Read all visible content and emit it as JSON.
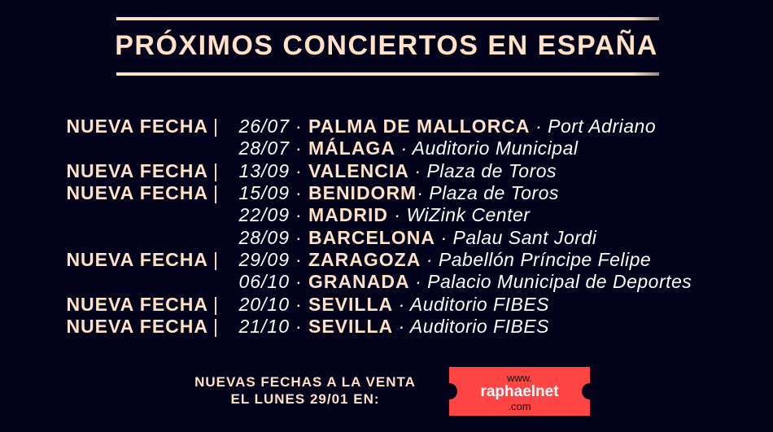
{
  "title": "PRÓXIMOS CONCIERTOS EN ESPAÑA",
  "separator": "·",
  "pipe": "|",
  "concerts": [
    {
      "label": "NUEVA FECHA",
      "date": "26/07",
      "city": "PALMA DE MALLORCA",
      "venue": "· Port Adriano"
    },
    {
      "label": "",
      "date": "28/07",
      "city": "MÁLAGA",
      "venue": "· Auditorio Municipal"
    },
    {
      "label": "NUEVA FECHA",
      "date": "13/09",
      "city": "VALENCIA",
      "venue": "· Plaza de Toros"
    },
    {
      "label": "NUEVA FECHA",
      "date": "15/09",
      "city": "BENIDORM",
      "venue": "· Plaza de Toros"
    },
    {
      "label": "",
      "date": "22/09",
      "city": "MADRID",
      "venue": "· WiZink Center"
    },
    {
      "label": "",
      "date": "28/09",
      "city": "BARCELONA",
      "venue": "· Palau Sant Jordi"
    },
    {
      "label": "NUEVA FECHA",
      "date": "29/09",
      "city": "ZARAGOZA",
      "venue": "· Pabellón Príncipe Felipe"
    },
    {
      "label": "",
      "date": "06/10",
      "city": "GRANADA",
      "venue": "· Palacio Municipal de Deportes"
    },
    {
      "label": "NUEVA FECHA",
      "date": "20/10",
      "city": "SEVILLA",
      "venue": "· Auditorio FIBES"
    },
    {
      "label": "NUEVA FECHA",
      "date": "21/10",
      "city": "SEVILLA",
      "venue": "· Auditorio FIBES"
    }
  ],
  "sale": {
    "line1": "NUEVAS FECHAS A LA VENTA",
    "line2": "EL LUNES 29/01 EN:"
  },
  "ticket": {
    "line1": "www.",
    "line2": "raphaelnet",
    "line3": ".com"
  },
  "colors": {
    "background": "#02021a",
    "accent": "#ffe2c6",
    "ticket": "#ff4444"
  }
}
